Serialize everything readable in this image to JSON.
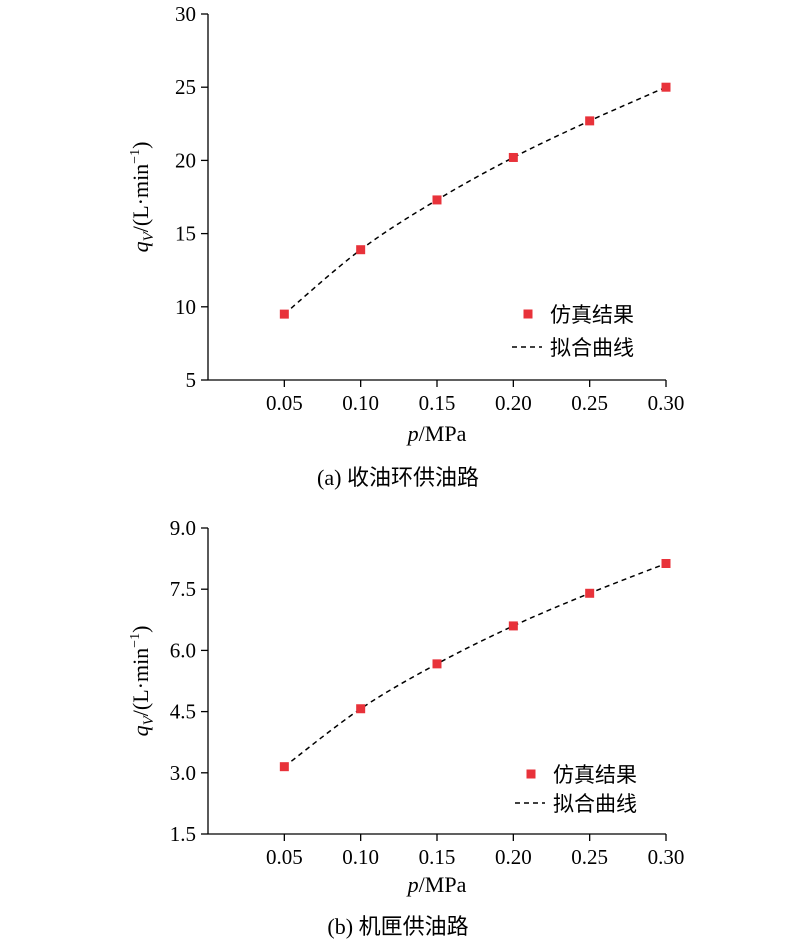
{
  "chart_data": [
    {
      "type": "scatter",
      "caption": "(a) 收油环供油路",
      "xlabel_var": "p",
      "xlabel_unit": "/MPa",
      "ylabel_var": "q",
      "ylabel_sub": "V",
      "ylabel_unit": "/(L·min",
      "ylabel_sup": "−1",
      "ylabel_close": ")",
      "xlim": [
        0.0,
        0.3
      ],
      "ylim": [
        5,
        30
      ],
      "xticks": [
        0.05,
        0.1,
        0.15,
        0.2,
        0.25,
        0.3
      ],
      "xtick_labels": [
        "0.05",
        "0.10",
        "0.15",
        "0.20",
        "0.25",
        "0.30"
      ],
      "yticks": [
        5,
        10,
        15,
        20,
        25,
        30
      ],
      "ytick_labels": [
        "5",
        "10",
        "15",
        "20",
        "25",
        "30"
      ],
      "legend_position": "lower-right",
      "series": [
        {
          "name": "仿真结果",
          "kind": "markers",
          "color": "#e8323a",
          "x": [
            0.05,
            0.1,
            0.15,
            0.2,
            0.25,
            0.3
          ],
          "y": [
            9.5,
            13.9,
            17.3,
            20.2,
            22.7,
            25.0
          ]
        },
        {
          "name": "拟合曲线",
          "kind": "dashed-line",
          "color": "#000000",
          "x": [
            0.05,
            0.1,
            0.15,
            0.2,
            0.25,
            0.3
          ],
          "y": [
            9.5,
            13.9,
            17.3,
            20.2,
            22.7,
            25.0
          ]
        }
      ]
    },
    {
      "type": "scatter",
      "caption": "(b) 机匣供油路",
      "xlabel_var": "p",
      "xlabel_unit": "/MPa",
      "ylabel_var": "q",
      "ylabel_sub": "V",
      "ylabel_unit": "/(L·min",
      "ylabel_sup": "−1",
      "ylabel_close": ")",
      "xlim": [
        0.0,
        0.3
      ],
      "ylim": [
        1.5,
        9.0
      ],
      "xticks": [
        0.05,
        0.1,
        0.15,
        0.2,
        0.25,
        0.3
      ],
      "xtick_labels": [
        "0.05",
        "0.10",
        "0.15",
        "0.20",
        "0.25",
        "0.30"
      ],
      "yticks": [
        1.5,
        3.0,
        4.5,
        6.0,
        7.5,
        9.0
      ],
      "ytick_labels": [
        "1.5",
        "3.0",
        "4.5",
        "6.0",
        "7.5",
        "9.0"
      ],
      "legend_position": "lower-right",
      "series": [
        {
          "name": "仿真结果",
          "kind": "markers",
          "color": "#e8323a",
          "x": [
            0.05,
            0.1,
            0.15,
            0.2,
            0.25,
            0.3
          ],
          "y": [
            3.15,
            4.57,
            5.67,
            6.6,
            7.4,
            8.13
          ]
        },
        {
          "name": "拟合曲线",
          "kind": "dashed-line",
          "color": "#000000",
          "x": [
            0.05,
            0.1,
            0.15,
            0.2,
            0.25,
            0.3
          ],
          "y": [
            3.15,
            4.57,
            5.67,
            6.6,
            7.4,
            8.13
          ]
        }
      ]
    }
  ]
}
